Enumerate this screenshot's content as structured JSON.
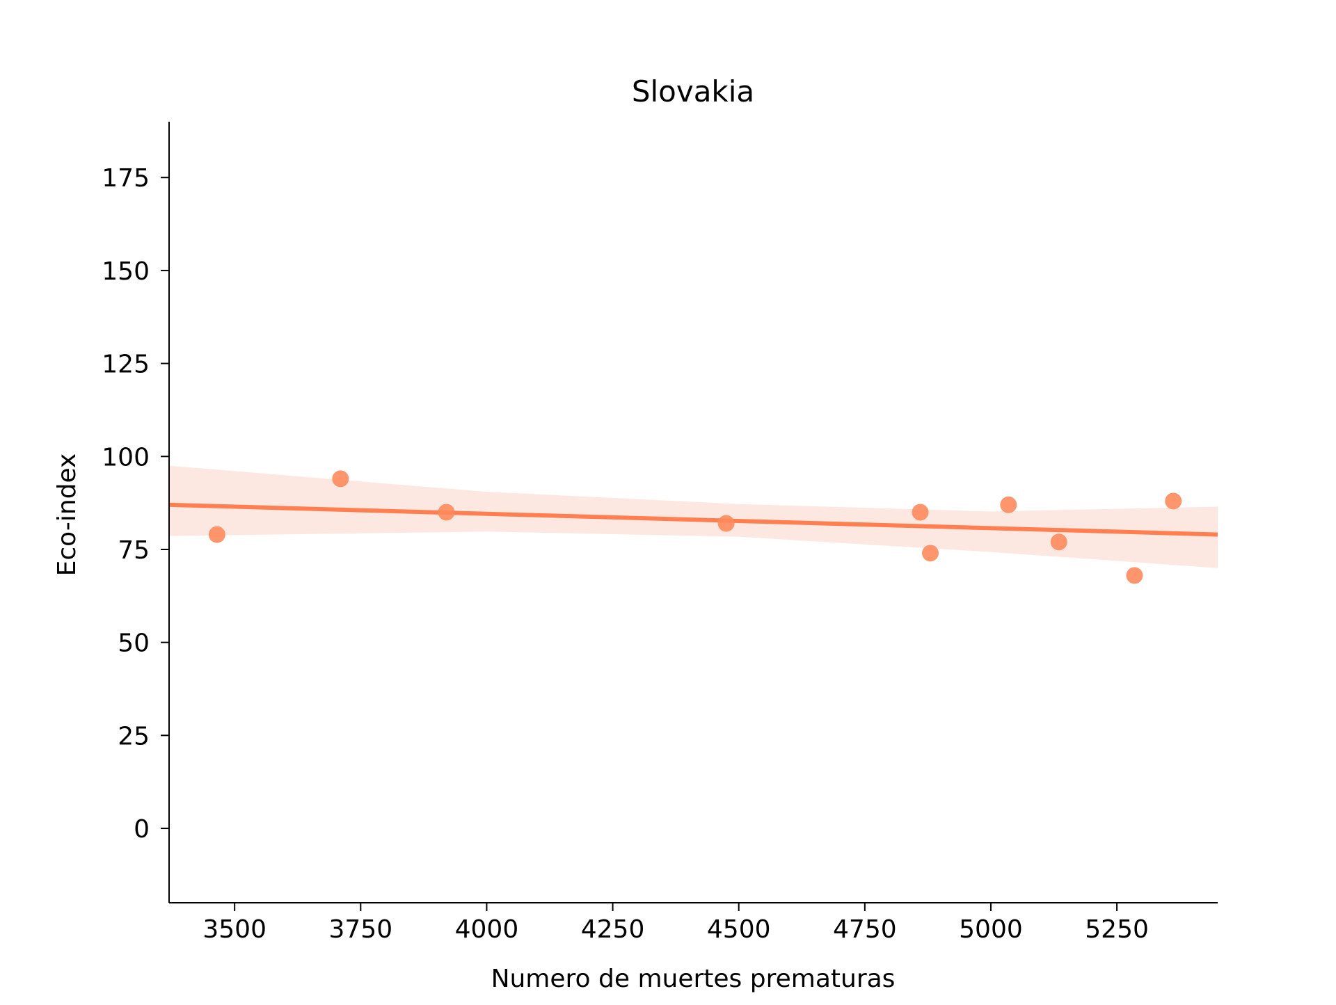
{
  "chart_data": {
    "type": "scatter",
    "title": "Slovakia",
    "xlabel": "Numero de muertes prematuras",
    "ylabel": "Eco-index",
    "xlim": [
      3370,
      5450
    ],
    "ylim": [
      -20,
      190
    ],
    "xticks": [
      3500,
      3750,
      4000,
      4250,
      4500,
      4750,
      5000,
      5250
    ],
    "yticks": [
      0,
      25,
      50,
      75,
      100,
      125,
      150,
      175
    ],
    "grid": false,
    "legend": "none",
    "points": [
      {
        "x": 3465,
        "y": 79
      },
      {
        "x": 3710,
        "y": 94
      },
      {
        "x": 3920,
        "y": 85
      },
      {
        "x": 4475,
        "y": 82
      },
      {
        "x": 4860,
        "y": 85
      },
      {
        "x": 4880,
        "y": 74
      },
      {
        "x": 5035,
        "y": 87
      },
      {
        "x": 5135,
        "y": 77
      },
      {
        "x": 5285,
        "y": 68
      },
      {
        "x": 5362,
        "y": 88
      }
    ],
    "regression": {
      "line": [
        [
          3370,
          87
        ],
        [
          5450,
          79
        ]
      ],
      "ci_upper": [
        [
          3370,
          97.5
        ],
        [
          4000,
          90.5
        ],
        [
          4500,
          87.2
        ],
        [
          5000,
          85.2
        ],
        [
          5450,
          86.5
        ]
      ],
      "ci_lower": [
        [
          3370,
          78.6
        ],
        [
          4000,
          79.8
        ],
        [
          4500,
          78.4
        ],
        [
          5000,
          74.3
        ],
        [
          5450,
          70.0
        ]
      ]
    },
    "colors": {
      "points": "#ff8a5c",
      "line": "#ff7f50",
      "band": "#fde4dc"
    }
  }
}
